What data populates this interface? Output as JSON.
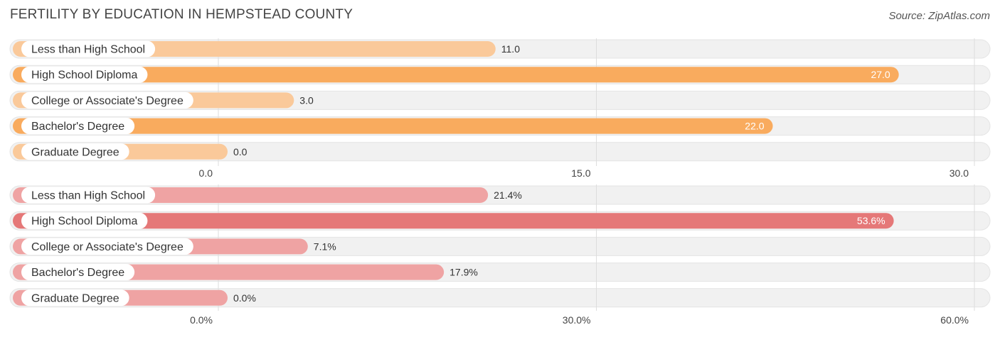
{
  "header": {
    "title": "FERTILITY BY EDUCATION IN HEMPSTEAD COUNTY",
    "source": "Source: ZipAtlas.com"
  },
  "colors": {
    "orange_light": "#FAC99A",
    "orange_strong": "#F9AB5E",
    "red_light": "#EFA3A3",
    "red_strong": "#E57878",
    "track": "#F1F1F1",
    "grid": "#DDDDDD"
  },
  "chart_data": [
    {
      "type": "bar",
      "orientation": "horizontal",
      "categories": [
        "Less than High School",
        "High School Diploma",
        "College or Associate's Degree",
        "Bachelor's Degree",
        "Graduate Degree"
      ],
      "values": [
        11.0,
        27.0,
        3.0,
        22.0,
        0.0
      ],
      "value_labels": [
        "11.0",
        "27.0",
        "3.0",
        "22.0",
        "0.0"
      ],
      "highlight": [
        false,
        true,
        false,
        true,
        false
      ],
      "xlim": [
        0,
        30
      ],
      "ticks": [
        0,
        15,
        30
      ],
      "tick_labels": [
        "0.0",
        "15.0",
        "30.0"
      ],
      "palette": "orange"
    },
    {
      "type": "bar",
      "orientation": "horizontal",
      "categories": [
        "Less than High School",
        "High School Diploma",
        "College or Associate's Degree",
        "Bachelor's Degree",
        "Graduate Degree"
      ],
      "values": [
        21.4,
        53.6,
        7.1,
        17.9,
        0.0
      ],
      "value_labels": [
        "21.4%",
        "53.6%",
        "7.1%",
        "17.9%",
        "0.0%"
      ],
      "highlight": [
        false,
        true,
        false,
        false,
        false
      ],
      "xlim": [
        0,
        60
      ],
      "ticks": [
        0,
        30,
        60
      ],
      "tick_labels": [
        "0.0%",
        "30.0%",
        "60.0%"
      ],
      "palette": "red"
    }
  ]
}
